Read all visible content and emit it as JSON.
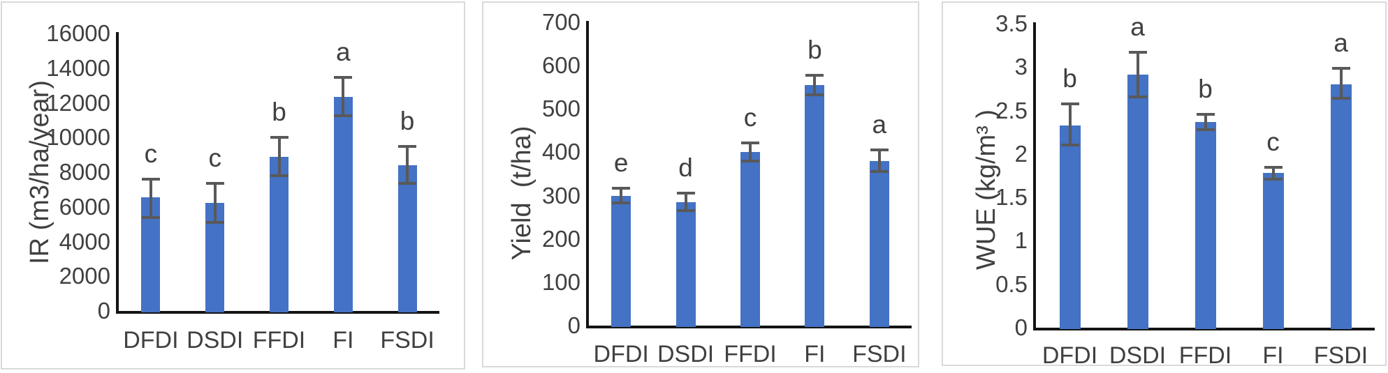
{
  "style": {
    "bar_color": "#4472C4",
    "error_bar_color": "#595959",
    "axis_line_color": "#141414",
    "text_color": "#404040",
    "panel_border_color": "#d9d9d9",
    "background_color": "#ffffff"
  },
  "chart_data": [
    {
      "type": "bar",
      "title": "",
      "xlabel": "",
      "ylabel": "IR (m3/ha/year)",
      "categories": [
        "DFDI",
        "DSDI",
        "FFDI",
        "FI",
        "FSDI"
      ],
      "values": [
        6550,
        6250,
        8875,
        12350,
        8400
      ],
      "error_plus": [
        1050,
        1100,
        1125,
        1100,
        1100
      ],
      "error_minus": [
        1150,
        1150,
        1075,
        1100,
        1050
      ],
      "sig_letters": [
        "c",
        "c",
        "b",
        "a",
        "b"
      ],
      "ylim": [
        0,
        16000
      ],
      "ytick_step": 2000,
      "ytick_labels": [
        "0",
        "2000",
        "4000",
        "6000",
        "8000",
        "10000",
        "12000",
        "14000",
        "16000"
      ],
      "grid": false,
      "legend": "none"
    },
    {
      "type": "bar",
      "title": "",
      "xlabel": "",
      "ylabel": "Yield  (t/ha)",
      "categories": [
        "DFDI",
        "DSDI",
        "FFDI",
        "FI",
        "FSDI"
      ],
      "values": [
        300,
        285,
        400,
        555,
        380
      ],
      "error_plus": [
        17,
        21,
        22,
        23,
        26
      ],
      "error_minus": [
        17,
        20,
        21,
        22,
        24
      ],
      "sig_letters": [
        "e",
        "d",
        "c",
        "b",
        "a"
      ],
      "ylim": [
        0,
        700
      ],
      "ytick_step": 100,
      "ytick_labels": [
        "0",
        "100",
        "200",
        "300",
        "400",
        "500",
        "600",
        "700"
      ],
      "grid": false,
      "legend": "none"
    },
    {
      "type": "bar",
      "title": "",
      "xlabel": "",
      "ylabel": "WUE (kg/m³ )",
      "categories": [
        "DFDI",
        "DSDI",
        "FFDI",
        "FI",
        "FSDI"
      ],
      "values": [
        2.33,
        2.91,
        2.37,
        1.78,
        2.8
      ],
      "error_plus": [
        0.25,
        0.26,
        0.09,
        0.07,
        0.19
      ],
      "error_minus": [
        0.23,
        0.25,
        0.09,
        0.07,
        0.16
      ],
      "sig_letters": [
        "b",
        "a",
        "b",
        "c",
        "a"
      ],
      "ylim": [
        0,
        3.5
      ],
      "ytick_step": 0.5,
      "ytick_labels": [
        "0",
        "0.5",
        "1",
        "1.5",
        "2",
        "2.5",
        "3",
        "3.5"
      ],
      "grid": false,
      "legend": "none"
    }
  ]
}
